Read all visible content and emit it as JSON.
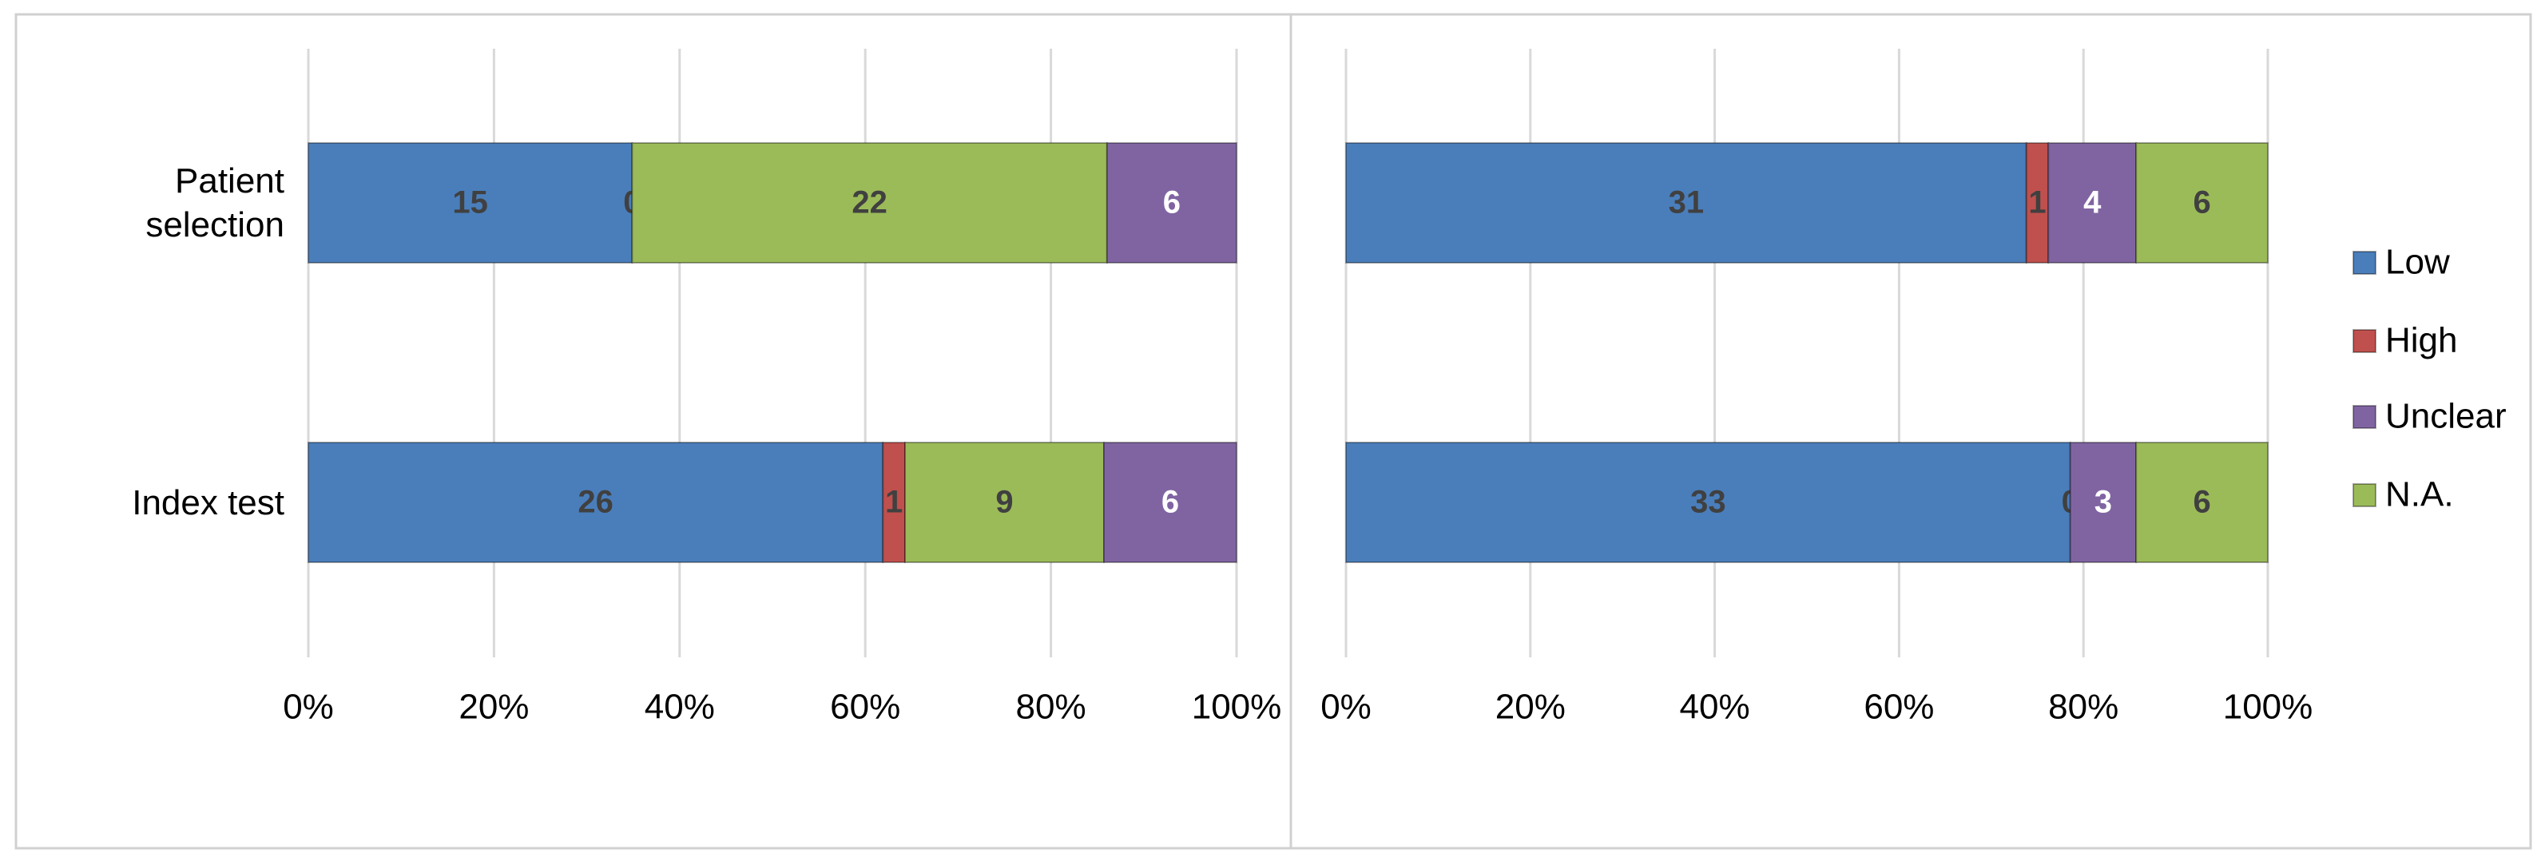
{
  "chart_data": [
    {
      "type": "bar",
      "orientation": "horizontal",
      "stacking": "percent",
      "categories": [
        "Patient selection",
        "Index test"
      ],
      "series": [
        {
          "color": "#4a7ebb",
          "label_color": "#404040",
          "values": [
            15,
            26
          ]
        },
        {
          "color": "#c0504d",
          "label_color": "#404040",
          "values": [
            0,
            1
          ]
        },
        {
          "color": "#9bbb59",
          "label_color": "#404040",
          "values": [
            22,
            9
          ]
        },
        {
          "color": "#8064a2",
          "label_color": "#ffffff",
          "values": [
            6,
            6
          ]
        }
      ],
      "xlim": [
        0,
        100
      ],
      "xticks": [
        {
          "value": 0,
          "label": "0%"
        },
        {
          "value": 20,
          "label": "20%"
        },
        {
          "value": 40,
          "label": "40%"
        },
        {
          "value": 60,
          "label": "60%"
        },
        {
          "value": 80,
          "label": "80%"
        },
        {
          "value": 100,
          "label": "100%"
        }
      ],
      "grid": true,
      "legend": false
    },
    {
      "type": "bar",
      "orientation": "horizontal",
      "stacking": "percent",
      "categories": [
        null,
        null
      ],
      "series": [
        {
          "name": "Low",
          "color": "#4a7ebb",
          "label_color": "#404040",
          "values": [
            31,
            33
          ]
        },
        {
          "name": "High",
          "color": "#c0504d",
          "label_color": "#404040",
          "values": [
            1,
            0
          ]
        },
        {
          "name": "Unclear",
          "color": "#8064a2",
          "label_color": "#ffffff",
          "values": [
            4,
            3
          ]
        },
        {
          "name": "N.A.",
          "color": "#9bbb59",
          "label_color": "#404040",
          "values": [
            6,
            6
          ]
        }
      ],
      "xlim": [
        0,
        100
      ],
      "xticks": [
        {
          "value": 0,
          "label": "0%"
        },
        {
          "value": 20,
          "label": "20%"
        },
        {
          "value": 40,
          "label": "40%"
        },
        {
          "value": 60,
          "label": "60%"
        },
        {
          "value": 80,
          "label": "80%"
        },
        {
          "value": 100,
          "label": "100%"
        }
      ],
      "grid": true,
      "legend": "right"
    }
  ]
}
